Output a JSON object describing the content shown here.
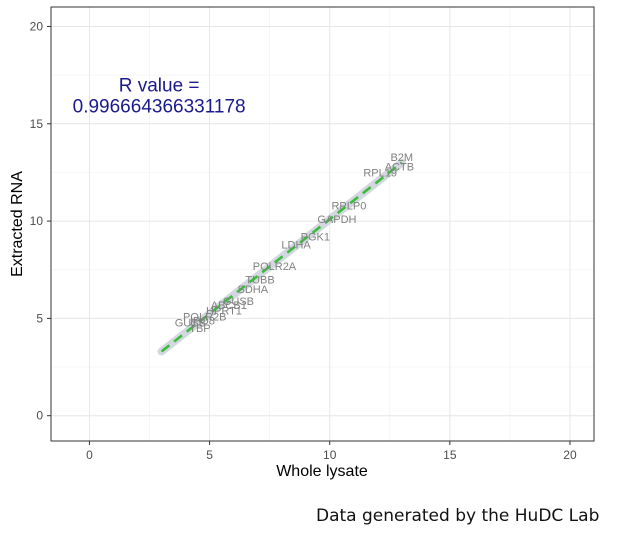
{
  "chart_data": {
    "type": "scatter",
    "title": "",
    "xlabel": "Whole lysate",
    "ylabel": "Extracted RNA",
    "xlim": [
      -1.6,
      21.0
    ],
    "ylim": [
      -1.3,
      21.0
    ],
    "xticks": [
      0,
      5,
      10,
      15,
      20
    ],
    "yticks": [
      0,
      5,
      10,
      15,
      20
    ],
    "grid": true,
    "annotation": {
      "line1": "R value =",
      "line2": "0.996664366331178",
      "x": 2.9,
      "y": 16.5,
      "color": "#1a1a8c"
    },
    "fit_line": {
      "x": [
        3.0,
        13.0
      ],
      "y": [
        3.3,
        13.0
      ],
      "color": "#3dbb3d",
      "band_color": "#c9cfd9"
    },
    "points": [
      {
        "label": "B2M",
        "x": 13.0,
        "y": 13.3
      },
      {
        "label": "ACTB",
        "x": 12.9,
        "y": 12.8
      },
      {
        "label": "RPL19",
        "x": 12.1,
        "y": 12.5
      },
      {
        "label": "RPLP0",
        "x": 10.8,
        "y": 10.8
      },
      {
        "label": "GAPDH",
        "x": 10.3,
        "y": 10.1
      },
      {
        "label": "PGK1",
        "x": 9.4,
        "y": 9.2
      },
      {
        "label": "LDHA",
        "x": 8.6,
        "y": 8.8
      },
      {
        "label": "POLR2A",
        "x": 7.7,
        "y": 7.7
      },
      {
        "label": "TUBB",
        "x": 7.1,
        "y": 7.0
      },
      {
        "label": "SDHA",
        "x": 6.8,
        "y": 6.5
      },
      {
        "label": "GUSB",
        "x": 6.2,
        "y": 5.9
      },
      {
        "label": "ABCB1",
        "x": 5.8,
        "y": 5.7
      },
      {
        "label": "HPRT1",
        "x": 5.6,
        "y": 5.4
      },
      {
        "label": "POLR2B",
        "x": 4.8,
        "y": 5.1
      },
      {
        "label": "IPO8",
        "x": 4.7,
        "y": 4.9
      },
      {
        "label": "GUSB2",
        "x": 4.2,
        "y": 4.8
      },
      {
        "label": "TBP",
        "x": 4.6,
        "y": 4.5
      }
    ]
  },
  "caption": "Data generated by the HuDC Lab"
}
